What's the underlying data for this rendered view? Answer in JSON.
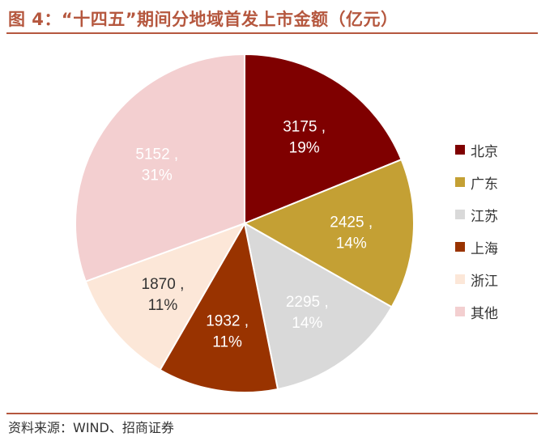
{
  "title": "图 4：“十四五”期间分地域首发上市金额（亿元）",
  "source": "资料来源：WIND、招商证券",
  "chart_data": {
    "type": "pie",
    "title": "图 4：“十四五”期间分地域首发上市金额（亿元）",
    "unit": "亿元",
    "start_angle": "12 o'clock, clockwise",
    "slices": [
      {
        "name": "北京",
        "value": 3175,
        "percent": "19%",
        "color": "#7f0000",
        "label_color": "#ffffff"
      },
      {
        "name": "广东",
        "value": 2425,
        "percent": "14%",
        "color": "#c4a034",
        "label_color": "#ffffff"
      },
      {
        "name": "江苏",
        "value": 2295,
        "percent": "14%",
        "color": "#d9d9d9",
        "label_color": "#ffffff"
      },
      {
        "name": "上海",
        "value": 1932,
        "percent": "11%",
        "color": "#993300",
        "label_color": "#ffffff"
      },
      {
        "name": "浙江",
        "value": 1870,
        "percent": "11%",
        "color": "#fce7d8",
        "label_color": "#333333"
      },
      {
        "name": "其他",
        "value": 5152,
        "percent": "31%",
        "color": "#f3cfd0",
        "label_color": "#ffffff"
      }
    ],
    "legend_position": "right"
  }
}
